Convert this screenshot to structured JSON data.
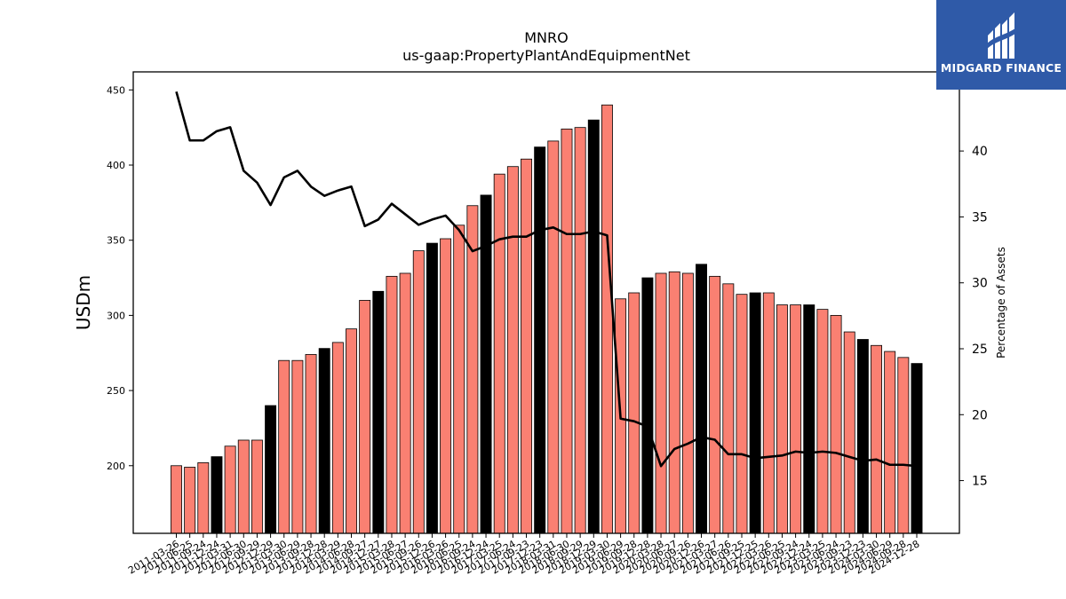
{
  "chart_data": {
    "type": "bar",
    "title": "MNRO",
    "subtitle": "us-gaap:PropertyPlantAndEquipmentNet",
    "ylabel": "USDm",
    "y2label": "Percentage of Assets",
    "ylim": [
      155,
      462
    ],
    "y2lim": [
      11,
      46
    ],
    "yticks": [
      200,
      250,
      300,
      350,
      400,
      450
    ],
    "y2ticks": [
      15,
      20,
      25,
      30,
      35,
      40
    ],
    "categories": [
      "2011-03-26",
      "2011-06-25",
      "2011-09-24",
      "2011-12-24",
      "2012-03-31",
      "2012-06-30",
      "2012-09-29",
      "2012-12-29",
      "2013-03-30",
      "2013-06-29",
      "2013-09-28",
      "2013-12-28",
      "2014-03-29",
      "2014-06-28",
      "2014-09-27",
      "2014-12-27",
      "2015-03-28",
      "2015-06-27",
      "2015-09-26",
      "2015-12-26",
      "2016-03-26",
      "2016-06-25",
      "2016-09-24",
      "2016-12-24",
      "2017-03-25",
      "2017-06-24",
      "2017-09-23",
      "2017-12-23",
      "2018-03-31",
      "2018-06-30",
      "2018-09-29",
      "2018-12-29",
      "2019-03-30",
      "2019-06-29",
      "2019-09-28",
      "2019-12-28",
      "2020-03-28",
      "2020-06-27",
      "2020-09-26",
      "2020-12-26",
      "2021-03-27",
      "2021-06-26",
      "2021-09-25",
      "2021-12-25",
      "2022-03-26",
      "2022-06-25",
      "2022-09-24",
      "2022-12-24",
      "2023-03-25",
      "2023-06-24",
      "2023-09-23",
      "2023-12-23",
      "2024-03-30",
      "2024-06-29",
      "2024-09-28",
      "2024-12-28"
    ],
    "series": [
      {
        "type": "bar",
        "values": [
          200,
          199,
          202,
          206,
          213,
          217,
          217,
          240,
          270,
          270,
          274,
          278,
          282,
          291,
          310,
          316,
          326,
          328,
          343,
          348,
          351,
          360,
          373,
          380,
          394,
          399,
          404,
          412,
          416,
          424,
          425,
          430,
          440,
          311,
          315,
          325,
          328,
          329,
          328,
          334,
          326,
          321,
          314,
          315,
          315,
          307,
          307,
          307,
          304,
          300,
          289,
          284,
          280,
          276,
          272,
          268
        ],
        "colors": [
          "#fa8072",
          "#fa8072",
          "#fa8072",
          "#000000",
          "#fa8072",
          "#fa8072",
          "#fa8072",
          "#000000",
          "#fa8072",
          "#fa8072",
          "#fa8072",
          "#000000",
          "#fa8072",
          "#fa8072",
          "#fa8072",
          "#000000",
          "#fa8072",
          "#fa8072",
          "#fa8072",
          "#000000",
          "#fa8072",
          "#fa8072",
          "#fa8072",
          "#000000",
          "#fa8072",
          "#fa8072",
          "#fa8072",
          "#000000",
          "#fa8072",
          "#fa8072",
          "#fa8072",
          "#000000",
          "#fa8072",
          "#fa8072",
          "#fa8072",
          "#000000",
          "#fa8072",
          "#fa8072",
          "#fa8072",
          "#000000",
          "#fa8072",
          "#fa8072",
          "#fa8072",
          "#000000",
          "#fa8072",
          "#fa8072",
          "#fa8072",
          "#000000",
          "#fa8072",
          "#fa8072",
          "#fa8072",
          "#000000",
          "#fa8072",
          "#fa8072",
          "#fa8072",
          "#000000"
        ]
      },
      {
        "type": "line",
        "axis": "right",
        "color": "#000000",
        "values": [
          44.5,
          40.8,
          40.8,
          41.5,
          41.8,
          38.5,
          37.6,
          35.9,
          38.0,
          38.5,
          37.3,
          36.6,
          37.0,
          37.3,
          34.3,
          34.8,
          36.0,
          35.2,
          34.4,
          34.8,
          35.1,
          34.0,
          32.4,
          32.8,
          33.3,
          33.5,
          33.5,
          34.0,
          34.2,
          33.7,
          33.7,
          33.9,
          33.6,
          19.7,
          19.5,
          19.1,
          16.1,
          17.4,
          17.8,
          18.3,
          18.1,
          17.0,
          17.0,
          16.7,
          16.8,
          16.9,
          17.2,
          17.1,
          17.2,
          17.1,
          16.8,
          16.5,
          16.6,
          16.2,
          16.2,
          16.1
        ]
      }
    ]
  },
  "logo": {
    "text": "MIDGARD FINANCE",
    "background": "#2f5aa8",
    "icon": "midgard-logo-icon"
  }
}
